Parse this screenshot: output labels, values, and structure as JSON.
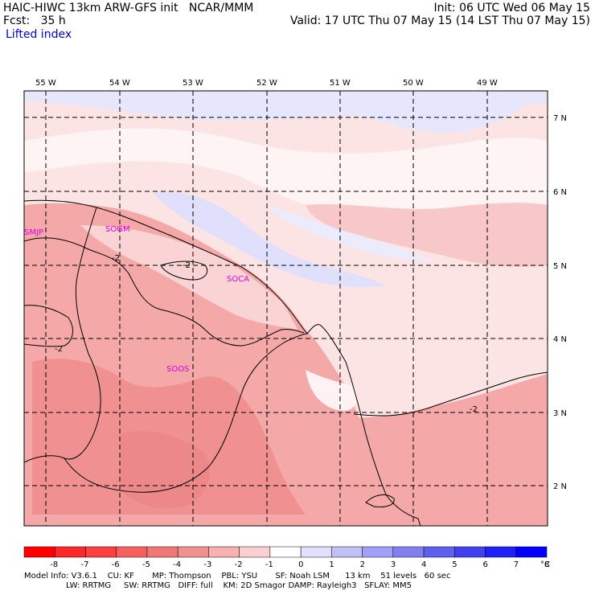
{
  "header": {
    "left_line1": "HAIC-HIWC 13km ARW-GFS init   NCAR/MMM",
    "left_line2": "Fcst:   35 h",
    "right_line1": "Init: 06 UTC Wed 06 May 15",
    "right_line2": "Valid: 17 UTC Thu 07 May 15 (14 LST Thu 07 May 15)",
    "variable": "Lifted index"
  },
  "map": {
    "lon_labels": [
      "55 W",
      "54 W",
      "53 W",
      "52 W",
      "51 W",
      "50 W",
      "49 W"
    ],
    "lat_labels": [
      "7 N",
      "6 N",
      "5 N",
      "4 N",
      "3 N",
      "2 N"
    ],
    "stations": [
      "SMJP",
      "SOGM",
      "SOCA",
      "SOOS"
    ],
    "contour_labels": [
      "-2",
      "-2",
      "-2",
      "-2"
    ],
    "grid_style": "dashed"
  },
  "colorbar": {
    "ticks": [
      "-8",
      "-7",
      "-6",
      "-5",
      "-4",
      "-3",
      "-2",
      "-1",
      "0",
      "1",
      "2",
      "3",
      "4",
      "5",
      "6",
      "7",
      "8"
    ],
    "unit": "°C",
    "colors": [
      "#ff0000",
      "#ff2828",
      "#ff4040",
      "#f86060",
      "#f07878",
      "#f09090",
      "#f8b0b0",
      "#fcd0d0",
      "#ffffff",
      "#e0e0fc",
      "#c0c0f8",
      "#a0a0f8",
      "#8080f0",
      "#6060f0",
      "#4040f0",
      "#2020f8",
      "#0000ff"
    ]
  },
  "footer": {
    "line1": "Model Info: V3.6.1    CU: KF       MP: Thompson    PBL: YSU       SF: Noah LSM      13 km    51 levels   60 sec",
    "line2": "LW: RRTMG     SW: RRTMG   DIFF: full    KM: 2D Smagor DAMP: Rayleigh3   SFLAY: MM5"
  }
}
